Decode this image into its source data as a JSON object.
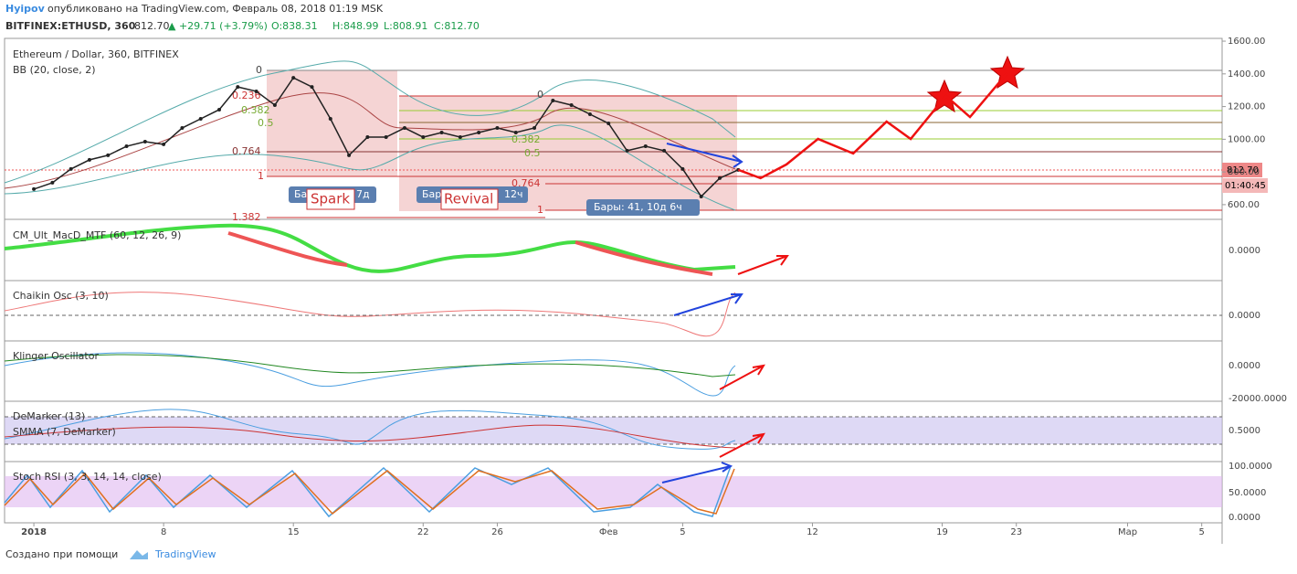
{
  "header": {
    "author": "Hyipov",
    "published": "опубликовано на TradingView.com, Февраль 08, 2018 01:19 MSK",
    "symbol": "BITFINEX:ETHUSD, 360",
    "last": "812.70",
    "change": "▲ +29.71 (+3.79%)",
    "o": "O:838.31",
    "h": "H:848.99",
    "l": "L:808.91",
    "c": "C:812.70"
  },
  "chart_data": {
    "type": "line",
    "title": "Ethereum / Dollar, 360, BITFINEX",
    "subtitle": "BB (20, close, 2)",
    "x": [
      0,
      1,
      2,
      3,
      4,
      5,
      6,
      7,
      8,
      9,
      10,
      11,
      12,
      13,
      14,
      15,
      16,
      17,
      18,
      19,
      20,
      21,
      22,
      23,
      24,
      25,
      26,
      27,
      28,
      29,
      30,
      31,
      32,
      33,
      34,
      35,
      36,
      37,
      38
    ],
    "values": [
      695,
      734,
      818,
      874,
      902,
      957,
      985,
      969,
      1069,
      1125,
      1181,
      1320,
      1293,
      1209,
      1376,
      1320,
      1125,
      902,
      1013,
      1013,
      1069,
      1013,
      1041,
      1013,
      1041,
      1069,
      1041,
      1069,
      1237,
      1209,
      1153,
      1097,
      930,
      957,
      930,
      818,
      650,
      762,
      812.7
    ],
    "color": "#222222",
    "projection": {
      "color": "#ee1111",
      "x": [
        38,
        39.2,
        40.6,
        42.3,
        44.2,
        46.0,
        47.3,
        49.2,
        50.5,
        52.5
      ],
      "values": [
        812.7,
        762,
        846,
        1002,
        913,
        1108,
        1002,
        1265,
        1136,
        1404
      ]
    },
    "ylim": [
      510,
      1617
    ],
    "yticks": [
      {
        "value": 600,
        "label": "600.00"
      },
      {
        "value": 800,
        "label": "800.00"
      },
      {
        "value": 1000,
        "label": "1000.00"
      },
      {
        "value": 1200,
        "label": "1200.00"
      },
      {
        "value": 1400,
        "label": "1400.00"
      },
      {
        "value": 1600,
        "label": "1600.00"
      }
    ],
    "xlim": [
      -1.58,
      64.1
    ],
    "xticks": [
      {
        "value": 0,
        "label": "2018"
      },
      {
        "value": 7,
        "label": "8"
      },
      {
        "value": 14,
        "label": "15"
      },
      {
        "value": 21,
        "label": "22"
      },
      {
        "value": 25,
        "label": "26"
      },
      {
        "value": 31,
        "label": "Фев"
      },
      {
        "value": 35,
        "label": "5"
      },
      {
        "value": 42,
        "label": "12"
      },
      {
        "value": 49,
        "label": "19"
      },
      {
        "value": 53,
        "label": "23"
      },
      {
        "value": 59,
        "label": "Мар"
      },
      {
        "value": 63,
        "label": "5"
      }
    ],
    "price_label": "812.70",
    "countdown": "01:40:45",
    "fib_labels": [
      "0",
      "0.236",
      "0.382",
      "0.5",
      "0.764",
      "1",
      "1.382",
      "0.5",
      "0.382",
      "0.764",
      "1",
      "0"
    ],
    "boxes": [
      "Ба",
      "7д",
      "Spark",
      "Бар",
      "12ч",
      "Revival",
      "Бары: 41, 10д 6ч"
    ]
  },
  "panels": [
    {
      "label": "CM_Ult_MacD_MTF (60, 12, 26, 9)",
      "ticks": [
        "0.0000"
      ]
    },
    {
      "label": "Chaikin Osc (3, 10)",
      "ticks": [
        "0.0000"
      ]
    },
    {
      "label": "Klinger Oscillator",
      "ticks": [
        "0.0000",
        "-20000.0000"
      ]
    },
    {
      "label": "DeMarker (13)",
      "label2": "SMMA (7, DeMarker)",
      "ticks": [
        "0.5000"
      ]
    },
    {
      "label": "Stoch RSI (3, 3, 14, 14, close)",
      "ticks": [
        "100.0000",
        "50.0000",
        "0.0000"
      ]
    }
  ],
  "footer": {
    "text": "Создано при помощи",
    "brand": "TradingView"
  }
}
